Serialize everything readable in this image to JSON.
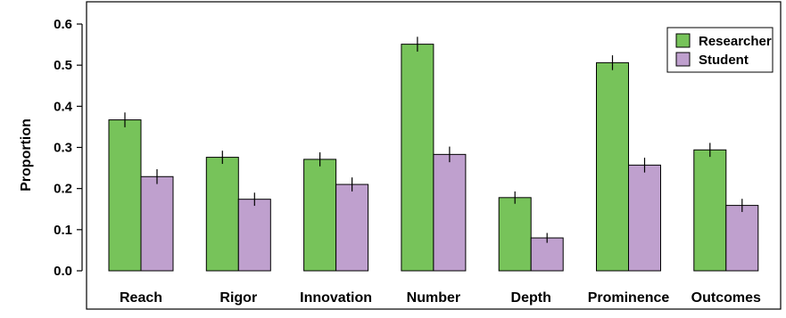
{
  "chart_data": {
    "type": "bar",
    "title": "",
    "xlabel": "",
    "ylabel": "Proportion",
    "ylim": [
      0,
      0.6
    ],
    "yticks": [
      "0.0",
      "0.1",
      "0.2",
      "0.3",
      "0.4",
      "0.5",
      "0.6"
    ],
    "categories": [
      "Reach",
      "Rigor",
      "Innovation",
      "Number",
      "Depth",
      "Prominence",
      "Outcomes"
    ],
    "series": [
      {
        "name": "Researcher",
        "color": "#77c35a",
        "values": [
          0.367,
          0.276,
          0.271,
          0.551,
          0.178,
          0.506,
          0.294
        ],
        "error": [
          0.018,
          0.016,
          0.017,
          0.018,
          0.015,
          0.018,
          0.017
        ]
      },
      {
        "name": "Student",
        "color": "#bfa0ce",
        "values": [
          0.229,
          0.174,
          0.21,
          0.283,
          0.08,
          0.257,
          0.159
        ],
        "error": [
          0.018,
          0.016,
          0.017,
          0.019,
          0.012,
          0.018,
          0.016
        ]
      }
    ],
    "error_bars": true,
    "grid": false,
    "legend_position": "top-right"
  }
}
